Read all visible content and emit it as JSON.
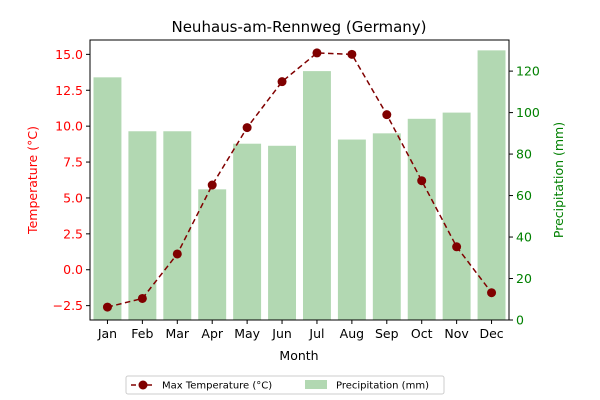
{
  "chart_data": {
    "type": "bar+line",
    "title": "Neuhaus-am-Rennweg (Germany)",
    "xlabel": "Month",
    "categories": [
      "Jan",
      "Feb",
      "Mar",
      "Apr",
      "May",
      "Jun",
      "Jul",
      "Aug",
      "Sep",
      "Oct",
      "Nov",
      "Dec"
    ],
    "left_axis": {
      "label": "Temperature (°C)",
      "ylim": [
        -3.5,
        16.0
      ],
      "ticks": [
        -2.5,
        0.0,
        2.5,
        5.0,
        7.5,
        10.0,
        12.5,
        15.0
      ],
      "tick_labels": [
        "−2.5",
        "0.0",
        "2.5",
        "5.0",
        "7.5",
        "10.0",
        "12.5",
        "15.0"
      ],
      "color": "#ff0000"
    },
    "right_axis": {
      "label": "Precipitation (mm)",
      "ylim": [
        0,
        135
      ],
      "ticks": [
        0,
        20,
        40,
        60,
        80,
        100,
        120
      ],
      "tick_labels": [
        "0",
        "20",
        "40",
        "60",
        "80",
        "100",
        "120"
      ],
      "color": "#008000"
    },
    "series": [
      {
        "name": "Max Temperature (°C)",
        "type": "line",
        "axis": "left",
        "color": "#800000",
        "values": [
          -2.6,
          -2.0,
          1.1,
          5.9,
          9.9,
          13.1,
          15.1,
          15.0,
          10.8,
          6.2,
          1.6,
          -1.6
        ]
      },
      {
        "name": "Precipitation (mm)",
        "type": "bar",
        "axis": "right",
        "color": "#b2d8b2",
        "values": [
          117,
          91,
          91,
          63,
          85,
          84,
          120,
          87,
          90,
          97,
          100,
          130
        ]
      }
    ],
    "legend": "bottom-center",
    "grid": false
  }
}
